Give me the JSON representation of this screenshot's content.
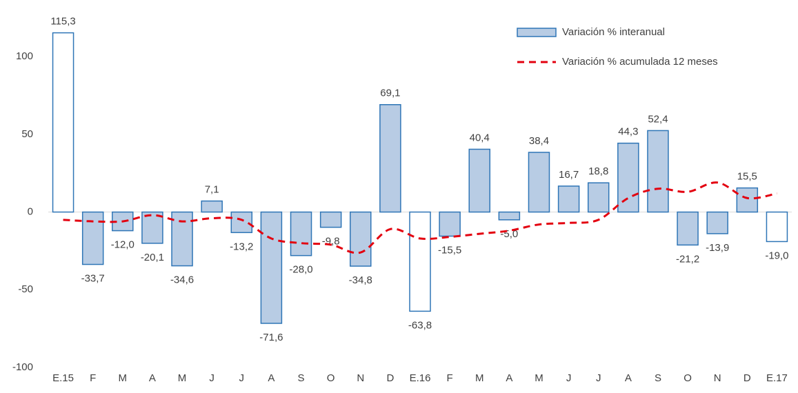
{
  "chart_data": {
    "type": "combo",
    "categories": [
      "E.15",
      "F",
      "M",
      "A",
      "M",
      "J",
      "J",
      "A",
      "S",
      "O",
      "N",
      "D",
      "E.16",
      "F",
      "M",
      "A",
      "M",
      "J",
      "J",
      "A",
      "S",
      "O",
      "N",
      "D",
      "E.17"
    ],
    "series": [
      {
        "name": "Variación % interanual",
        "type": "bar",
        "color": "#b8cce4",
        "stroke": "#2e75b6",
        "fills": [
          "#ffffff",
          "#b8cce4",
          "#b8cce4",
          "#b8cce4",
          "#b8cce4",
          "#b8cce4",
          "#b8cce4",
          "#b8cce4",
          "#b8cce4",
          "#b8cce4",
          "#b8cce4",
          "#b8cce4",
          "#ffffff",
          "#b8cce4",
          "#b8cce4",
          "#b8cce4",
          "#b8cce4",
          "#b8cce4",
          "#b8cce4",
          "#b8cce4",
          "#b8cce4",
          "#b8cce4",
          "#b8cce4",
          "#b8cce4",
          "#ffffff"
        ],
        "values": [
          115.3,
          -33.7,
          -12.0,
          -20.1,
          -34.6,
          7.1,
          -13.2,
          -71.6,
          -28.0,
          -9.8,
          -34.8,
          69.1,
          -63.8,
          -15.5,
          40.4,
          -5.0,
          38.4,
          16.7,
          18.8,
          44.3,
          52.4,
          -21.2,
          -13.9,
          15.5,
          -19.0
        ],
        "value_labels": [
          "115,3",
          "-33,7",
          "-12,0",
          "-20,1",
          "-34,6",
          "7,1",
          "-13,2",
          "-71,6",
          "-28,0",
          "-9,8",
          "-34,8",
          "69,1",
          "-63,8",
          "-15,5",
          "40,4",
          "-5,0",
          "38,4",
          "16,7",
          "18,8",
          "44,3",
          "52,4",
          "-21,2",
          "-13,9",
          "15,5",
          "-19,0"
        ]
      },
      {
        "name": "Variación % acumulada 12 meses",
        "type": "line",
        "color": "#e3000f",
        "dashed": true,
        "values": [
          -5,
          -6,
          -6,
          -2,
          -6,
          -4,
          -5,
          -17,
          -20,
          -21,
          -26,
          -11,
          -17,
          -16,
          -14,
          -12,
          -8,
          -7,
          -5,
          9,
          15,
          13,
          19,
          9,
          12
        ]
      }
    ],
    "ylim": [
      -100,
      120
    ],
    "yticks": [
      -100,
      -50,
      0,
      50,
      100
    ],
    "grid": false,
    "legend": "top-right"
  }
}
